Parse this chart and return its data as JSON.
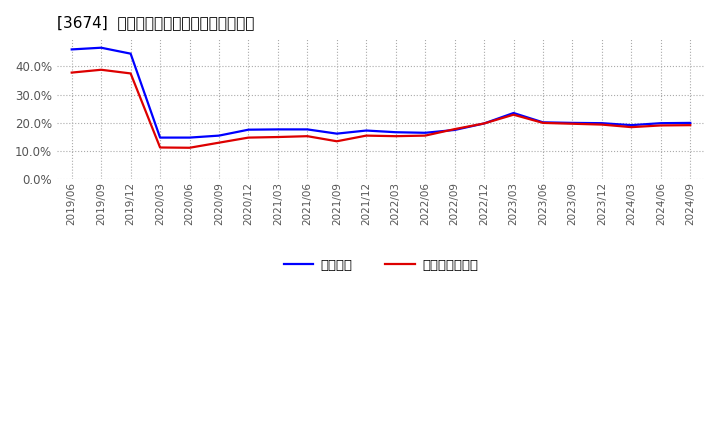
{
  "title": "[3674]  固定比率、固定長期適合率の推移",
  "ylim": [
    0.0,
    0.5
  ],
  "yticks": [
    0.0,
    0.1,
    0.2,
    0.3,
    0.4
  ],
  "background_color": "#ffffff",
  "grid_color": "#aaaaaa",
  "legend_labels": [
    "固定比率",
    "固定長期適合率"
  ],
  "line_colors": [
    "#0000ff",
    "#dd0000"
  ],
  "x_labels": [
    "2019/06",
    "2019/09",
    "2019/12",
    "2020/03",
    "2020/06",
    "2020/09",
    "2020/12",
    "2021/03",
    "2021/06",
    "2021/09",
    "2021/12",
    "2022/03",
    "2022/06",
    "2022/09",
    "2022/12",
    "2023/03",
    "2023/06",
    "2023/09",
    "2023/12",
    "2024/03",
    "2024/06",
    "2024/09"
  ],
  "blue_values": [
    0.46,
    0.466,
    0.445,
    0.148,
    0.148,
    0.155,
    0.176,
    0.177,
    0.177,
    0.162,
    0.173,
    0.167,
    0.165,
    0.175,
    0.198,
    0.235,
    0.202,
    0.2,
    0.199,
    0.192,
    0.199,
    0.2
  ],
  "red_values": [
    0.378,
    0.388,
    0.375,
    0.113,
    0.112,
    0.13,
    0.148,
    0.15,
    0.153,
    0.135,
    0.155,
    0.153,
    0.155,
    0.178,
    0.198,
    0.229,
    0.2,
    0.197,
    0.194,
    0.185,
    0.191,
    0.192
  ]
}
